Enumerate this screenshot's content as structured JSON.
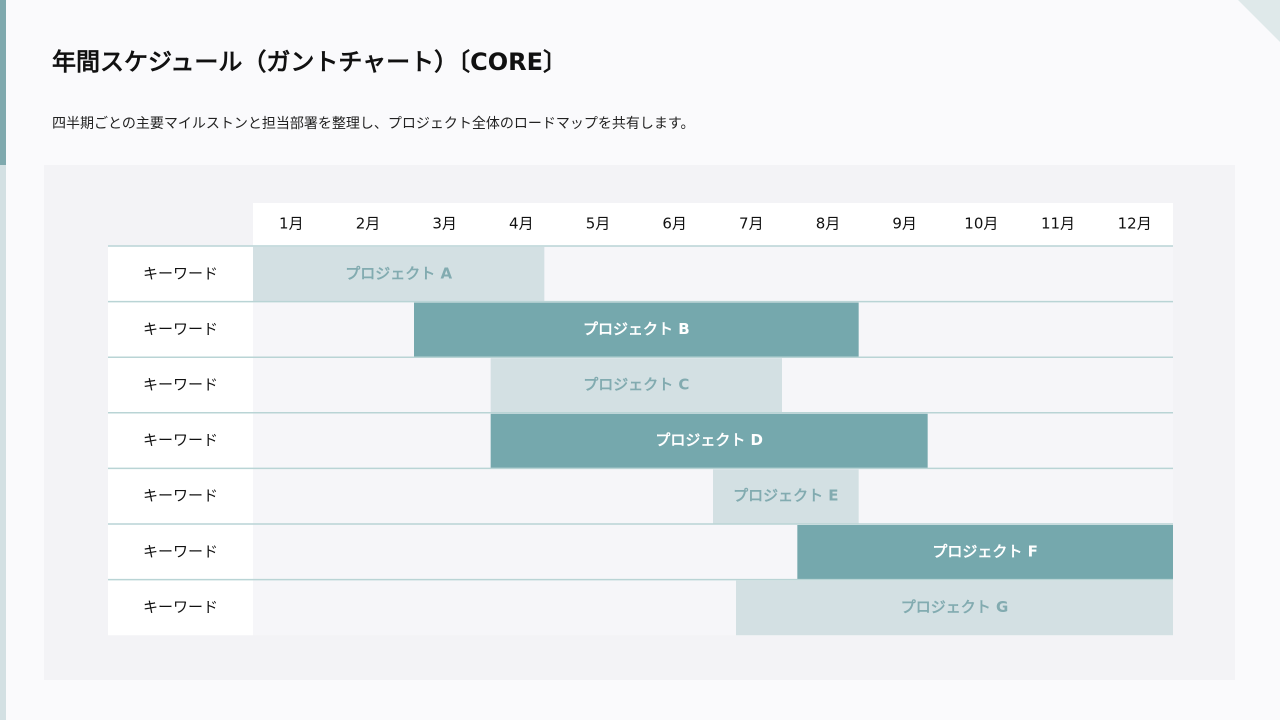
{
  "title": "年間スケジュール（ガントチャート）〔CORE〕",
  "subtitle": "四半期ごとの主要マイルストンと担当部署を整理し、プロジェクト全体のロードマップを共有します。",
  "chart_data": {
    "type": "gantt",
    "categories": [
      "1月",
      "2月",
      "3月",
      "4月",
      "5月",
      "6月",
      "7月",
      "8月",
      "9月",
      "10月",
      "11月",
      "12月"
    ],
    "xlim": [
      0,
      12
    ],
    "rows": [
      {
        "label": "キーワード",
        "name": "プロジェクト A",
        "start": 0,
        "end": 3.8,
        "color": "#d3e0e3",
        "text_color": "#82abb0"
      },
      {
        "label": "キーワード",
        "name": "プロジェクト B",
        "start": 2.1,
        "end": 7.9,
        "color": "#75a8ad",
        "text_color": "#ffffff"
      },
      {
        "label": "キーワード",
        "name": "プロジェクト C",
        "start": 3.1,
        "end": 6.9,
        "color": "#d3e0e3",
        "text_color": "#82abb0"
      },
      {
        "label": "キーワード",
        "name": "プロジェクト D",
        "start": 3.1,
        "end": 8.8,
        "color": "#75a8ad",
        "text_color": "#ffffff"
      },
      {
        "label": "キーワード",
        "name": "プロジェクト E",
        "start": 6.0,
        "end": 7.9,
        "color": "#d3e0e3",
        "text_color": "#82abb0"
      },
      {
        "label": "キーワード",
        "name": "プロジェクト F",
        "start": 7.1,
        "end": 12,
        "color": "#75a8ad",
        "text_color": "#ffffff"
      },
      {
        "label": "キーワード",
        "name": "プロジェクト G",
        "start": 6.3,
        "end": 12,
        "color": "#d3e0e3",
        "text_color": "#82abb0"
      }
    ]
  }
}
